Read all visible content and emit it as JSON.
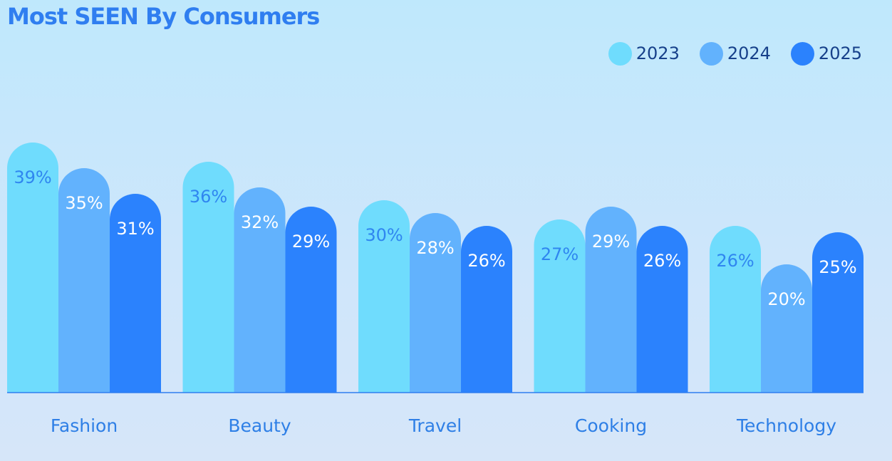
{
  "colors": {
    "series_2023": "#6fdcfd",
    "series_2024": "#62b2fd",
    "series_2025": "#2b82fd",
    "label_on_light": "#2f86f0",
    "label_on_dark": "#ffffff"
  },
  "legend": [
    {
      "label": "2023",
      "color": "#6fdcfd"
    },
    {
      "label": "2024",
      "color": "#62b2fd"
    },
    {
      "label": "2025",
      "color": "#2b82fd"
    }
  ],
  "chart_data": {
    "type": "bar",
    "title": "Most SEEN By Consumers",
    "categories": [
      "Fashion",
      "Beauty",
      "Travel",
      "Cooking",
      "Technology"
    ],
    "series": [
      {
        "name": "2023",
        "values": [
          39,
          36,
          30,
          27,
          26
        ],
        "value_labels": [
          "39%",
          "36%",
          "30%",
          "27%",
          "26%"
        ]
      },
      {
        "name": "2024",
        "values": [
          35,
          32,
          28,
          29,
          20
        ],
        "value_labels": [
          "35%",
          "32%",
          "28%",
          "29%",
          "20%"
        ]
      },
      {
        "name": "2025",
        "values": [
          31,
          29,
          26,
          26,
          25
        ],
        "value_labels": [
          "31%",
          "29%",
          "26%",
          "26%",
          "25%"
        ]
      }
    ],
    "unit": "%",
    "legend_position": "top-right",
    "grid": false
  }
}
